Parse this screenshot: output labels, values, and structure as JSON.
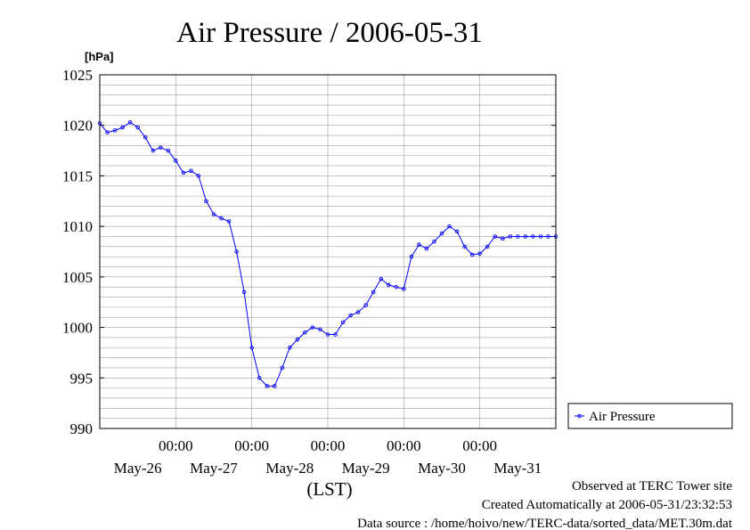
{
  "chart_data": {
    "type": "line",
    "title": "Air Pressure / 2006-05-31",
    "ylabel": "[hPa]",
    "xlabel": "(LST)",
    "ylim": [
      990,
      1025
    ],
    "yticks": [
      "990",
      "995",
      "1000",
      "1005",
      "1010",
      "1015",
      "1020",
      "1025"
    ],
    "xlim_days": [
      0,
      6
    ],
    "time_tick_label": "00:00",
    "date_labels": [
      "May-26",
      "May-27",
      "May-28",
      "May-29",
      "May-30",
      "May-31"
    ],
    "grid": true,
    "legend_position": "right",
    "series": [
      {
        "name": "Air Pressure",
        "color": "#0000ff",
        "x": [
          0.0,
          0.1,
          0.2,
          0.3,
          0.4,
          0.5,
          0.6,
          0.7,
          0.8,
          0.9,
          1.0,
          1.1,
          1.2,
          1.3,
          1.4,
          1.5,
          1.6,
          1.7,
          1.8,
          1.9,
          2.0,
          2.1,
          2.2,
          2.3,
          2.4,
          2.5,
          2.6,
          2.7,
          2.8,
          2.9,
          3.0,
          3.1,
          3.2,
          3.3,
          3.4,
          3.5,
          3.6,
          3.7,
          3.8,
          3.9,
          4.0,
          4.1,
          4.2,
          4.3,
          4.4,
          4.5,
          4.6,
          4.7,
          4.8,
          4.9,
          5.0,
          5.1,
          5.2,
          5.3,
          5.4,
          5.5,
          5.6,
          5.7,
          5.8,
          5.9,
          6.0
        ],
        "y": [
          1020.2,
          1019.3,
          1019.5,
          1019.8,
          1020.3,
          1019.8,
          1018.8,
          1017.5,
          1017.8,
          1017.5,
          1016.5,
          1015.3,
          1015.5,
          1015.0,
          1012.5,
          1011.2,
          1010.8,
          1010.5,
          1007.5,
          1003.5,
          998.0,
          995.0,
          994.2,
          994.2,
          996.0,
          998.0,
          998.8,
          999.5,
          1000.0,
          999.8,
          999.3,
          999.3,
          1000.5,
          1001.2,
          1001.5,
          1002.2,
          1003.5,
          1004.8,
          1004.2,
          1004.0,
          1003.8,
          1007.0,
          1008.2,
          1007.8,
          1008.5,
          1009.3,
          1010.0,
          1009.5,
          1008.0,
          1007.2,
          1007.3,
          1008.0,
          1009.0,
          1008.8,
          1009.0,
          1009.0,
          1009.0,
          1009.0,
          1009.0,
          1009.0,
          1009.0
        ]
      }
    ]
  },
  "footer": {
    "line1": "Observed at TERC Tower site",
    "line2": "Created Automatically at 2006-05-31/23:32:53",
    "line3": "Data source : /home/hoivo/new/TERC-data/sorted_data/MET.30m.dat"
  }
}
